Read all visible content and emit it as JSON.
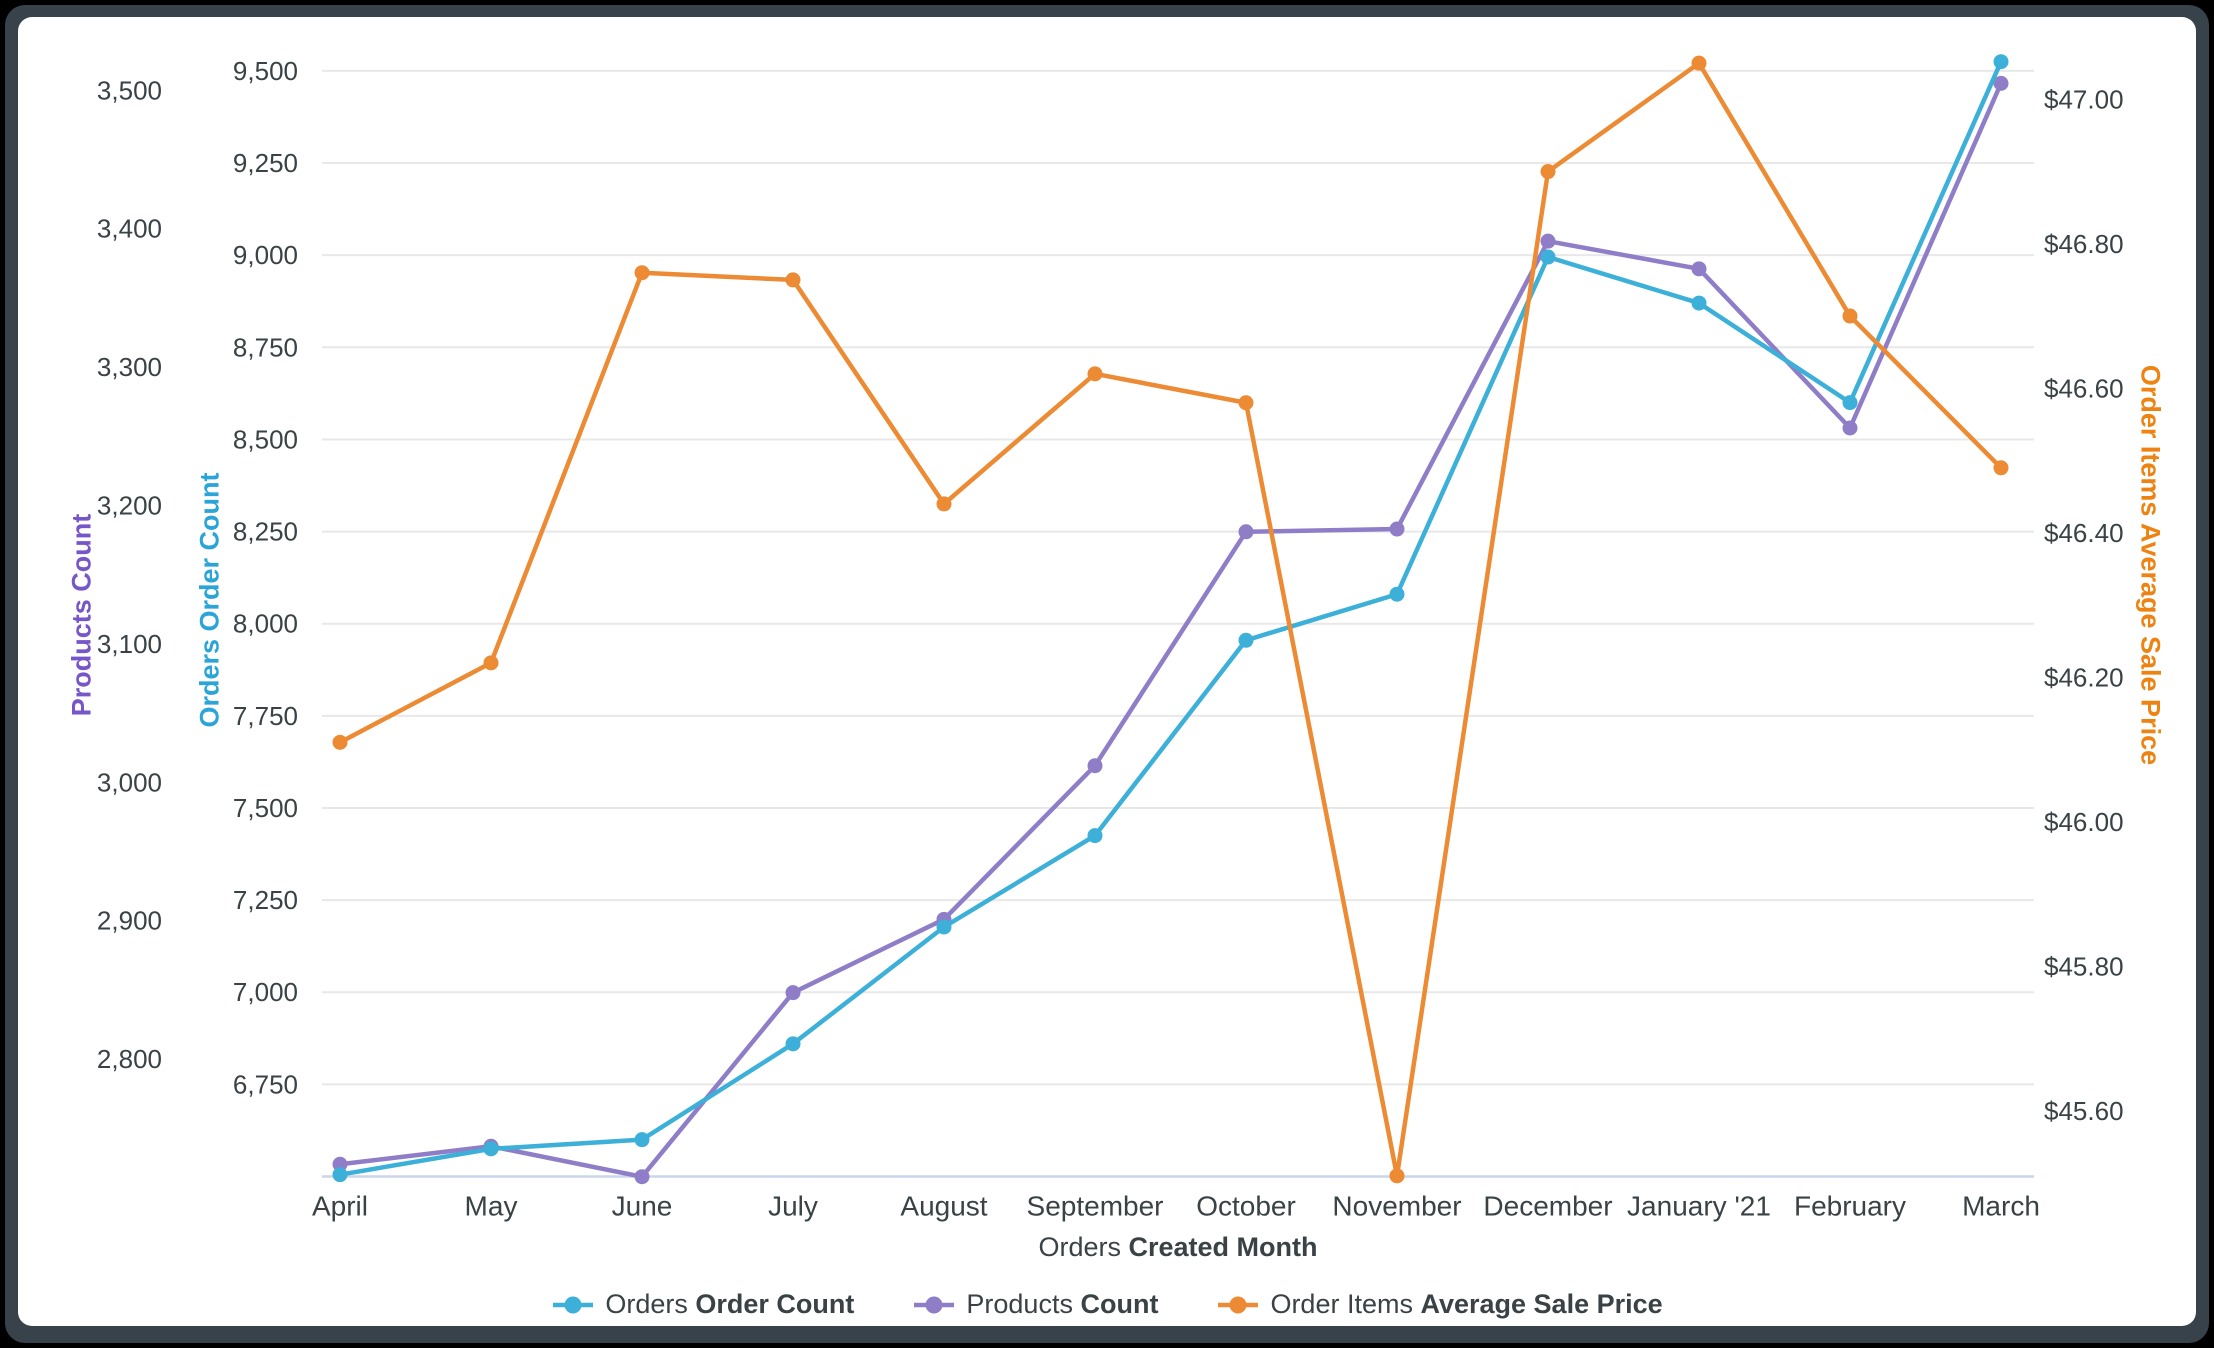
{
  "chart_data": {
    "type": "line",
    "title": "",
    "x_axis_title": {
      "prefix": "Orders",
      "bold": "Created Month"
    },
    "categories": [
      "April",
      "May",
      "June",
      "July",
      "August",
      "September",
      "October",
      "November",
      "December",
      "January '21",
      "February",
      "March"
    ],
    "grid": true,
    "legend_position": "bottom",
    "series": [
      {
        "key": "orders-order-count",
        "name_prefix": "Orders",
        "name_bold": "Order Count",
        "color": "#3cb0d8",
        "axis": "orders",
        "values": [
          6505,
          6575,
          6600,
          6860,
          7177,
          7425,
          7955,
          8080,
          8995,
          8870,
          8600,
          9525
        ]
      },
      {
        "key": "products-count",
        "name_prefix": "Products",
        "name_bold": "Count",
        "color": "#8f7ec7",
        "axis": "products",
        "values": [
          2724,
          2737,
          2715,
          2848,
          2901,
          3012,
          3181,
          3183,
          3391,
          3371,
          3256,
          3505
        ]
      },
      {
        "key": "order-items-average-sale-price",
        "name_prefix": "Order Items",
        "name_bold": "Average Sale Price",
        "color": "#ec8b33",
        "axis": "price",
        "values": [
          46.11,
          46.22,
          46.76,
          46.75,
          46.44,
          46.62,
          46.58,
          45.51,
          46.9,
          47.05,
          46.7,
          46.49
        ]
      }
    ],
    "axes": {
      "products": {
        "title": "Products Count",
        "side": "left-outer",
        "color": "#7656c8",
        "tick_labels": [
          "2,800",
          "2,900",
          "3,000",
          "3,100",
          "3,200",
          "3,300",
          "3,400",
          "3,500"
        ],
        "tick_values": [
          2800,
          2900,
          3000,
          3100,
          3200,
          3300,
          3400,
          3500
        ],
        "range_at_plot": [
          2715,
          3514
        ]
      },
      "orders": {
        "title": "Orders Order Count",
        "side": "left-inner",
        "color": "#2ba4d8",
        "tick_labels": [
          "6,750",
          "7,000",
          "7,250",
          "7,500",
          "7,750",
          "8,000",
          "8,250",
          "8,500",
          "8,750",
          "9,000",
          "9,250",
          "9,500"
        ],
        "tick_values": [
          6750,
          7000,
          7250,
          7500,
          7750,
          8000,
          8250,
          8500,
          8750,
          9000,
          9250,
          9500
        ],
        "range_at_plot": [
          6500,
          9586
        ]
      },
      "price": {
        "title": "Order Items Average Sale Price",
        "side": "right",
        "color": "#ee8312",
        "tick_labels": [
          "$45.60",
          "$45.80",
          "$46.00",
          "$46.20",
          "$46.40",
          "$46.60",
          "$46.80",
          "$47.00"
        ],
        "tick_values": [
          45.6,
          45.8,
          46.0,
          46.2,
          46.4,
          46.6,
          46.8,
          47.0
        ],
        "range_at_plot": [
          45.509,
          47.1
        ]
      }
    },
    "style": {
      "gridline_color": "#e8e8e8",
      "axis_line_color": "#ccd6eb",
      "tick_text_color": "#3a4245",
      "background": "#ffffff"
    }
  }
}
